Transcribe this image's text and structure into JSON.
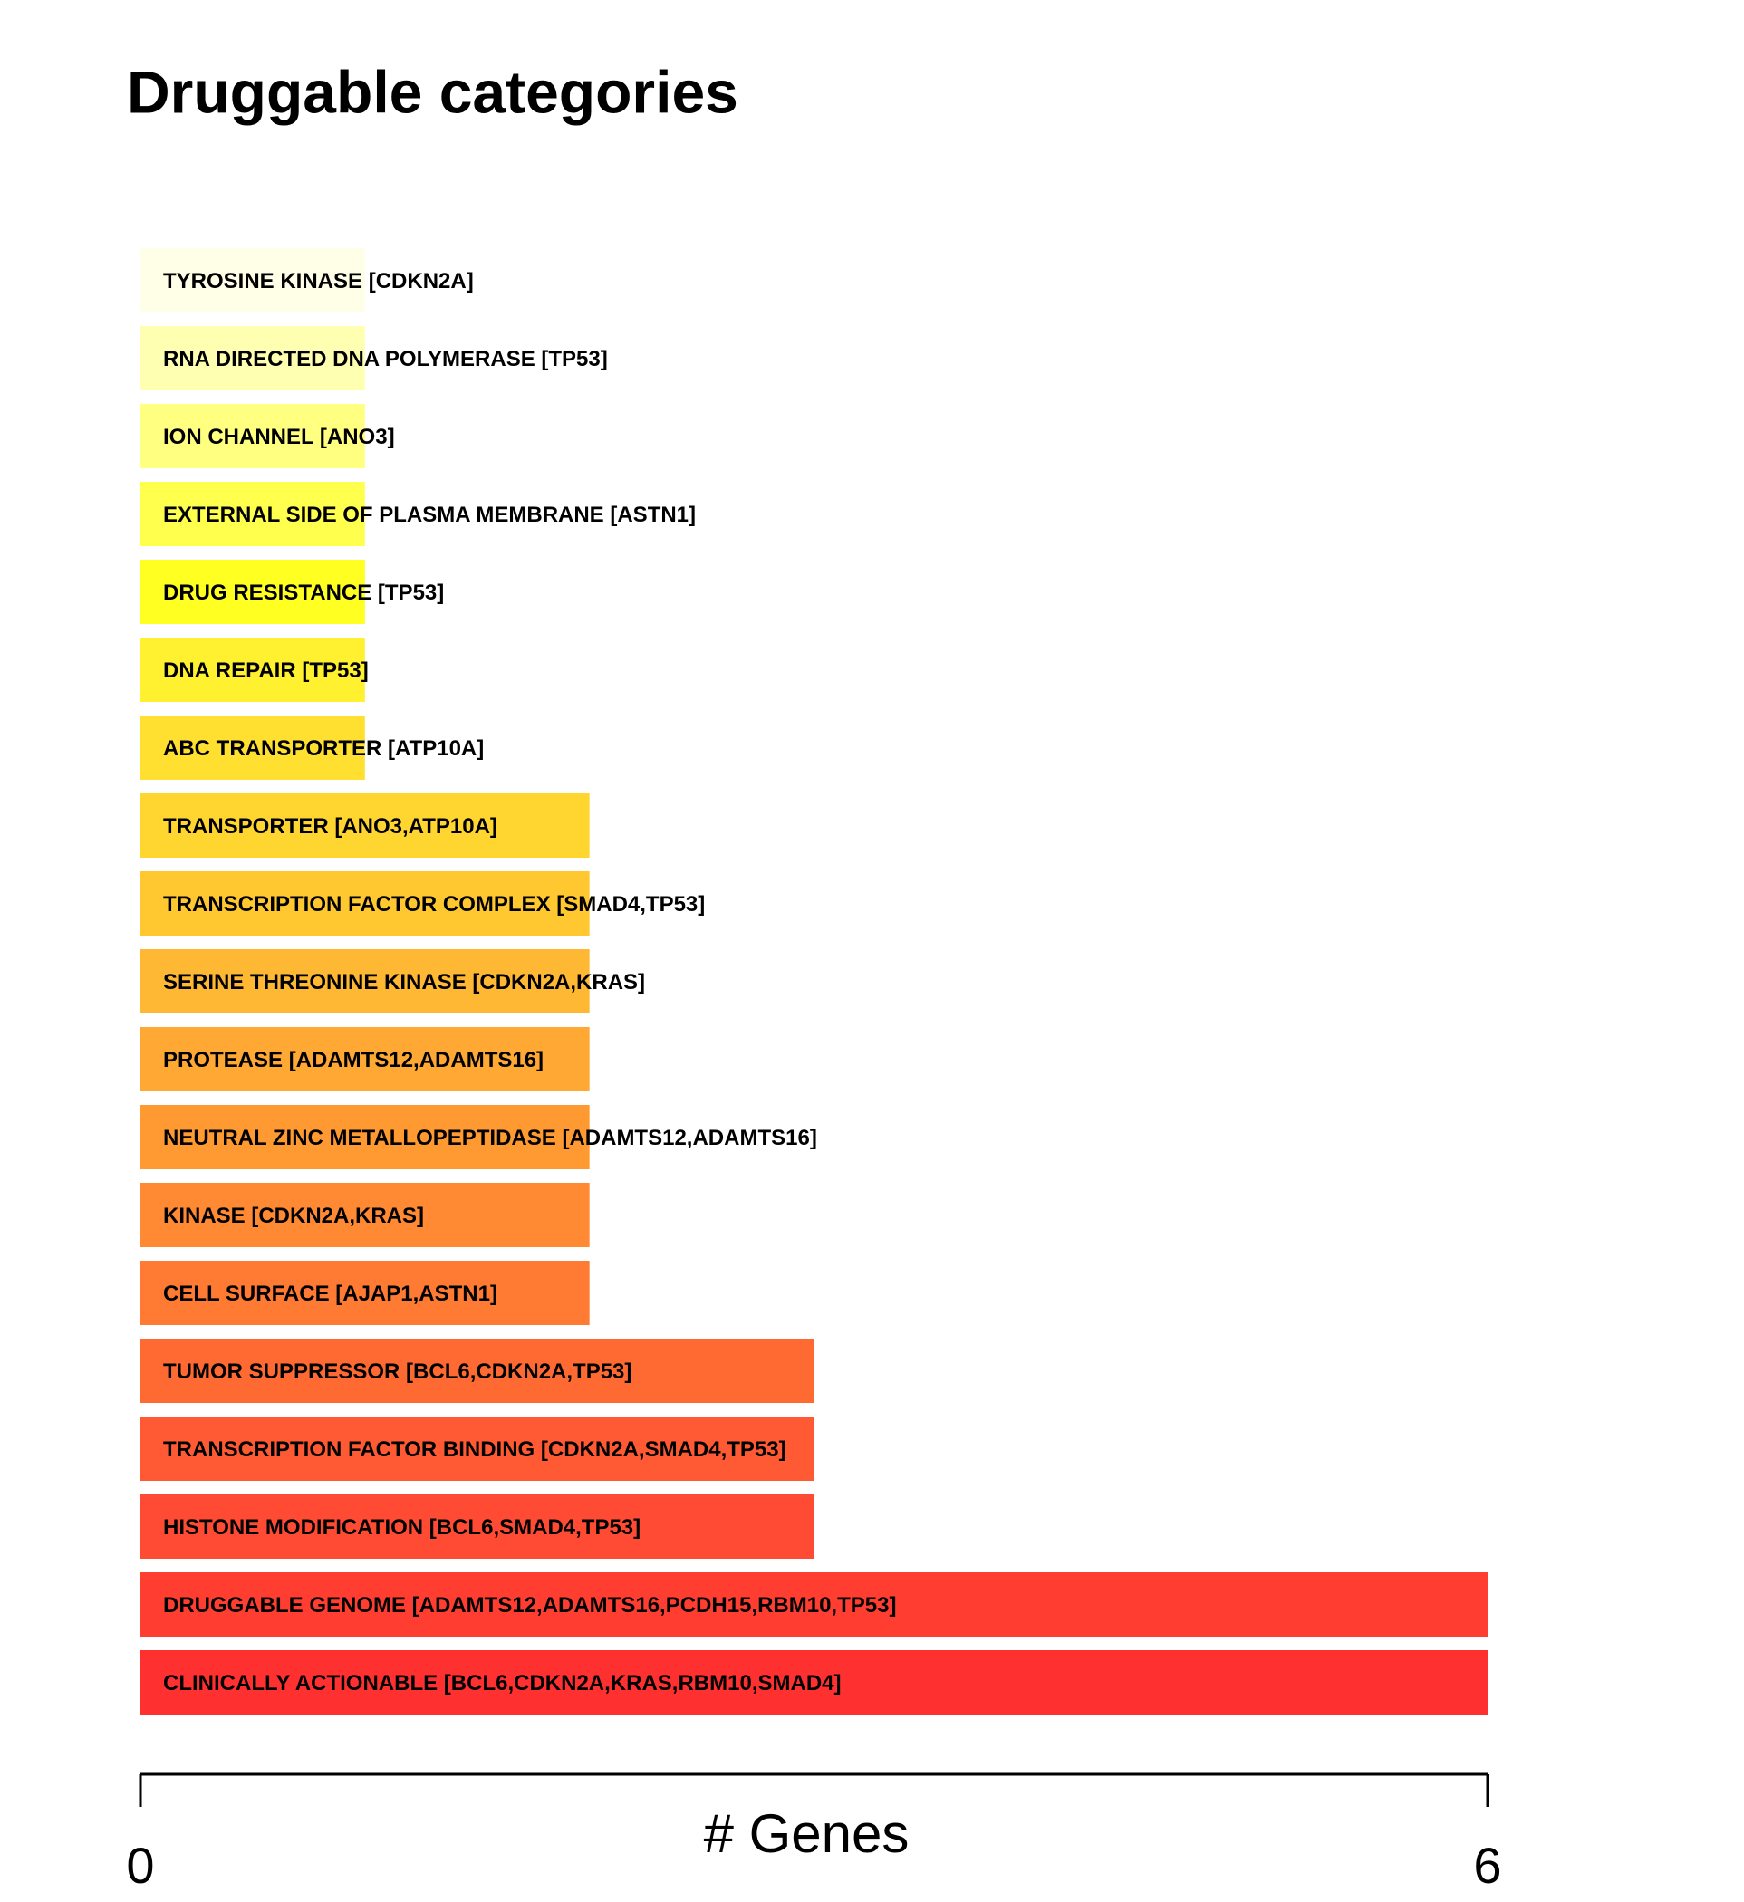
{
  "chart_data": {
    "type": "barh",
    "title": "Druggable categories",
    "xlabel": "# Genes",
    "categories": [
      "TYROSINE KINASE [CDKN2A]",
      "RNA DIRECTED DNA POLYMERASE [TP53]",
      "ION CHANNEL [ANO3]",
      "EXTERNAL SIDE OF PLASMA MEMBRANE [ASTN1]",
      "DRUG RESISTANCE [TP53]",
      "DNA REPAIR [TP53]",
      "ABC TRANSPORTER [ATP10A]",
      "TRANSPORTER [ANO3,ATP10A]",
      "TRANSCRIPTION FACTOR COMPLEX [SMAD4,TP53]",
      "SERINE THREONINE KINASE [CDKN2A,KRAS]",
      "PROTEASE [ADAMTS12,ADAMTS16]",
      "NEUTRAL ZINC METALLOPEPTIDASE [ADAMTS12,ADAMTS16]",
      "KINASE [CDKN2A,KRAS]",
      "CELL SURFACE [AJAP1,ASTN1]",
      "TUMOR SUPPRESSOR [BCL6,CDKN2A,TP53]",
      "TRANSCRIPTION FACTOR BINDING [CDKN2A,SMAD4,TP53]",
      "HISTONE MODIFICATION [BCL6,SMAD4,TP53]",
      "DRUGGABLE GENOME [ADAMTS12,ADAMTS16,PCDH15,RBM10,TP53]",
      "CLINICALLY ACTIONABLE [BCL6,CDKN2A,KRAS,RBM10,SMAD4]"
    ],
    "values": [
      1,
      1,
      1,
      1,
      1,
      1,
      1,
      2,
      2,
      2,
      2,
      2,
      2,
      2,
      3,
      3,
      3,
      6,
      6
    ],
    "colors": [
      "#FFFFE8",
      "#FFFFB2",
      "#FFFF80",
      "#FFFF4D",
      "#FFFF22",
      "#FFF030",
      "#FFE030",
      "#FFD530",
      "#FFC830",
      "#FFB833",
      "#FFA833",
      "#FF9A33",
      "#FF8A33",
      "#FF7A33",
      "#FF6A33",
      "#FF5A33",
      "#FF4B33",
      "#FF3D30",
      "#FF3030"
    ],
    "xlim": [
      0,
      6
    ],
    "xticks": [
      0,
      6
    ]
  }
}
